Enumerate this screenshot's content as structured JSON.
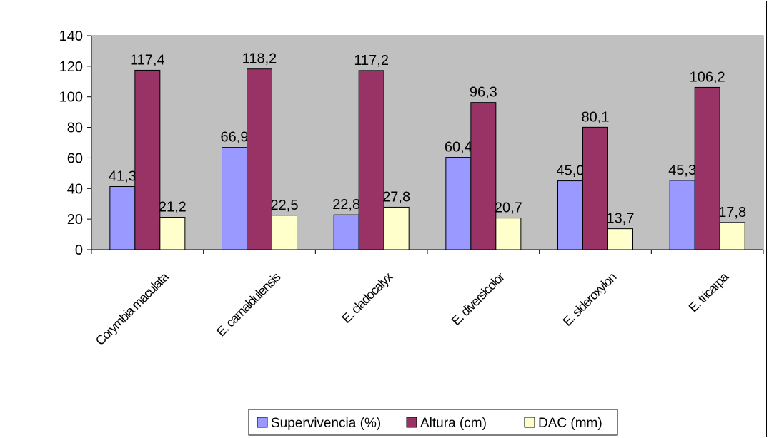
{
  "chart_data": {
    "type": "bar",
    "categories": [
      "Corymbia maculata",
      "E. camaldulensis",
      "E. cladocalyx",
      "E. diversicolor",
      "E. sideroxylon",
      "E. tricarpa"
    ],
    "series": [
      {
        "name": "Supervivencia (%)",
        "values": [
          41.3,
          66.9,
          22.8,
          60.4,
          45.0,
          45.3
        ],
        "labels": [
          "41,3",
          "66,9",
          "22,8",
          "60,4",
          "45,0",
          "45,3"
        ]
      },
      {
        "name": "Altura (cm)",
        "values": [
          117.4,
          118.2,
          117.2,
          96.3,
          80.1,
          106.2
        ],
        "labels": [
          "117,4",
          "118,2",
          "117,2",
          "96,3",
          "80,1",
          "106,2"
        ]
      },
      {
        "name": "DAC (mm)",
        "values": [
          21.2,
          22.5,
          27.8,
          20.7,
          13.7,
          17.8
        ],
        "labels": [
          "21,2",
          "22,5",
          "27,8",
          "20,7",
          "13,7",
          "17,8"
        ]
      }
    ],
    "ylim": [
      0,
      140
    ],
    "yticks": [
      "0",
      "20",
      "40",
      "60",
      "80",
      "100",
      "120",
      "140"
    ],
    "grid": false,
    "legend_position": "bottom",
    "colors": {
      "plot_background": "#c0c0c0",
      "series": [
        "#9999ff",
        "#993366",
        "#ffffcc"
      ]
    }
  }
}
